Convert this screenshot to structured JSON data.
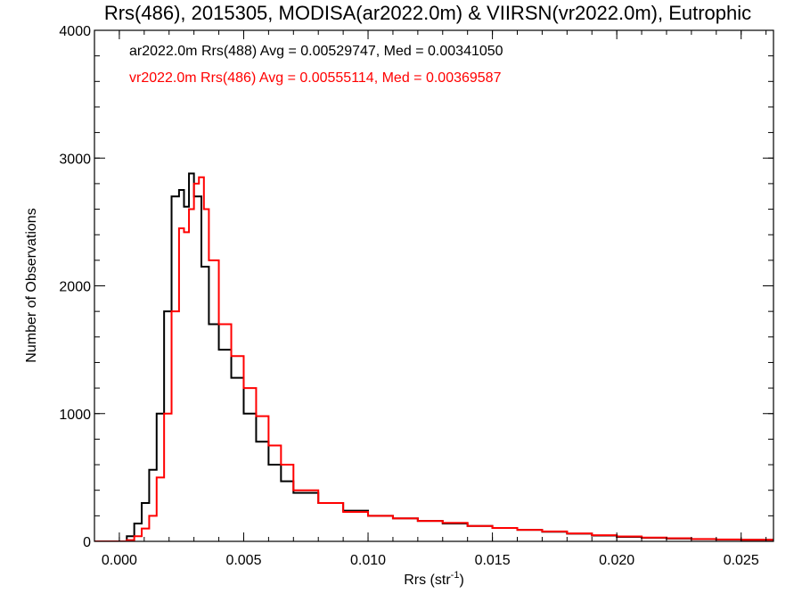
{
  "chart_data": {
    "type": "line",
    "title": "Rrs(486), 2015305, MODISA(ar2022.0m) & VIIRSN(vr2022.0m), Eutrophic",
    "xlabel": "Rrs (str",
    "xlabel_sup": "-1",
    "xlabel_close": ")",
    "ylabel": "Number of Observations",
    "xlim": [
      -0.001,
      0.0263
    ],
    "ylim": [
      0,
      4000
    ],
    "x_ticks": [
      0.0,
      0.005,
      0.01,
      0.015,
      0.02,
      0.025
    ],
    "x_tick_labels": [
      "0.000",
      "0.005",
      "0.010",
      "0.015",
      "0.020",
      "0.025"
    ],
    "y_ticks": [
      0,
      1000,
      2000,
      3000,
      4000
    ],
    "y_tick_labels": [
      "0",
      "1000",
      "2000",
      "3000",
      "4000"
    ],
    "legend_position": "top-left",
    "series": [
      {
        "name": "ar2022.0m Rrs(488) Avg = 0.00529747, Med = 0.00341050",
        "color": "#000000",
        "points": [
          [
            -0.001,
            0
          ],
          [
            0.0,
            0
          ],
          [
            0.0003,
            40
          ],
          [
            0.0006,
            140
          ],
          [
            0.0009,
            300
          ],
          [
            0.0012,
            560
          ],
          [
            0.0015,
            1000
          ],
          [
            0.0018,
            1800
          ],
          [
            0.0021,
            2700
          ],
          [
            0.0024,
            2750
          ],
          [
            0.0026,
            2620
          ],
          [
            0.0028,
            2880
          ],
          [
            0.003,
            2700
          ],
          [
            0.0033,
            2150
          ],
          [
            0.0036,
            1700
          ],
          [
            0.004,
            1500
          ],
          [
            0.0045,
            1280
          ],
          [
            0.005,
            1000
          ],
          [
            0.0055,
            780
          ],
          [
            0.006,
            600
          ],
          [
            0.0065,
            470
          ],
          [
            0.007,
            380
          ],
          [
            0.008,
            300
          ],
          [
            0.009,
            240
          ],
          [
            0.01,
            200
          ],
          [
            0.011,
            180
          ],
          [
            0.012,
            160
          ],
          [
            0.013,
            140
          ],
          [
            0.014,
            120
          ],
          [
            0.015,
            105
          ],
          [
            0.016,
            90
          ],
          [
            0.017,
            75
          ],
          [
            0.018,
            60
          ],
          [
            0.019,
            45
          ],
          [
            0.02,
            35
          ],
          [
            0.021,
            28
          ],
          [
            0.022,
            22
          ],
          [
            0.023,
            17
          ],
          [
            0.024,
            14
          ],
          [
            0.025,
            12
          ],
          [
            0.0263,
            10
          ]
        ]
      },
      {
        "name": "vr2022.0m Rrs(486) Avg = 0.00555114, Med = 0.00369587",
        "color": "#ff0000",
        "points": [
          [
            -0.001,
            0
          ],
          [
            0.0,
            0
          ],
          [
            0.0003,
            10
          ],
          [
            0.0006,
            40
          ],
          [
            0.0009,
            100
          ],
          [
            0.0012,
            200
          ],
          [
            0.0015,
            500
          ],
          [
            0.0018,
            1000
          ],
          [
            0.0021,
            1800
          ],
          [
            0.0024,
            2450
          ],
          [
            0.0026,
            2420
          ],
          [
            0.0028,
            2600
          ],
          [
            0.003,
            2800
          ],
          [
            0.0032,
            2850
          ],
          [
            0.0034,
            2600
          ],
          [
            0.0036,
            2200
          ],
          [
            0.004,
            1700
          ],
          [
            0.0045,
            1450
          ],
          [
            0.005,
            1200
          ],
          [
            0.0055,
            980
          ],
          [
            0.006,
            750
          ],
          [
            0.0065,
            600
          ],
          [
            0.007,
            400
          ],
          [
            0.008,
            300
          ],
          [
            0.009,
            230
          ],
          [
            0.01,
            200
          ],
          [
            0.011,
            180
          ],
          [
            0.012,
            160
          ],
          [
            0.013,
            145
          ],
          [
            0.014,
            120
          ],
          [
            0.015,
            105
          ],
          [
            0.016,
            90
          ],
          [
            0.017,
            78
          ],
          [
            0.018,
            62
          ],
          [
            0.019,
            48
          ],
          [
            0.02,
            38
          ],
          [
            0.021,
            30
          ],
          [
            0.022,
            24
          ],
          [
            0.023,
            18
          ],
          [
            0.024,
            15
          ],
          [
            0.025,
            12
          ],
          [
            0.0263,
            9
          ]
        ]
      }
    ]
  }
}
